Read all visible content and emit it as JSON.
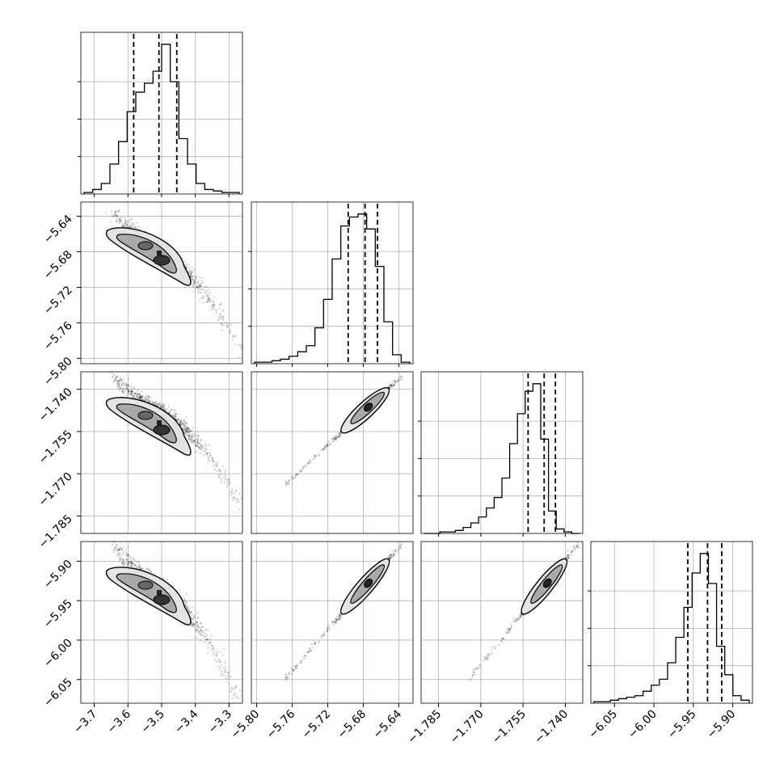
{
  "chart_data": {
    "type": "corner",
    "parameters": [
      {
        "ticks": [
          -3.7,
          -3.6,
          -3.5,
          -3.4,
          -3.3
        ],
        "tick_labels": [
          "−3.7",
          "−3.6",
          "−3.5",
          "−3.4",
          "−3.3"
        ],
        "range": [
          -3.74,
          -3.26
        ]
      },
      {
        "ticks": [
          -5.8,
          -5.76,
          -5.72,
          -5.68,
          -5.64
        ],
        "tick_labels": [
          "−5.80",
          "−5.76",
          "−5.72",
          "−5.68",
          "−5.64"
        ],
        "range": [
          -5.806,
          -5.624
        ]
      },
      {
        "ticks": [
          -1.785,
          -1.77,
          -1.755,
          -1.74
        ],
        "tick_labels": [
          "−1.785",
          "−1.770",
          "−1.755",
          "−1.740"
        ],
        "range": [
          -1.7912,
          -1.7338
        ]
      },
      {
        "ticks": [
          -6.05,
          -6.0,
          -5.95,
          -5.9
        ],
        "tick_labels": [
          "−6.05",
          "−6.00",
          "−5.95",
          "−5.90"
        ],
        "range": [
          -6.08,
          -5.875
        ]
      }
    ],
    "quantiles": [
      [
        -3.583,
        -3.508,
        -3.455
      ],
      [
        -5.697,
        -5.678,
        -5.664
      ],
      [
        -1.7532,
        -1.7475,
        -1.7435
      ],
      [
        -5.957,
        -5.932,
        -5.914
      ]
    ],
    "histograms": [
      [
        0.01,
        0.03,
        0.07,
        0.2,
        0.35,
        0.55,
        0.68,
        0.74,
        0.82,
        1.0,
        0.75,
        0.37,
        0.2,
        0.07,
        0.03,
        0.02,
        0.01,
        0.01
      ],
      [
        0.01,
        0.01,
        0.02,
        0.03,
        0.05,
        0.08,
        0.12,
        0.24,
        0.43,
        0.7,
        0.92,
        0.98,
        1.0,
        0.9,
        0.65,
        0.28,
        0.06,
        0.01
      ],
      [
        0.0,
        0.0,
        0.01,
        0.01,
        0.02,
        0.04,
        0.07,
        0.11,
        0.17,
        0.24,
        0.37,
        0.6,
        0.8,
        0.95,
        1.0,
        0.63,
        0.15,
        0.03,
        0.01,
        0.0
      ],
      [
        0.01,
        0.01,
        0.02,
        0.03,
        0.04,
        0.05,
        0.08,
        0.12,
        0.16,
        0.27,
        0.44,
        0.64,
        0.87,
        1.0,
        0.8,
        0.38,
        0.19,
        0.05,
        0.02
      ]
    ],
    "grid": true,
    "legend": "none"
  }
}
